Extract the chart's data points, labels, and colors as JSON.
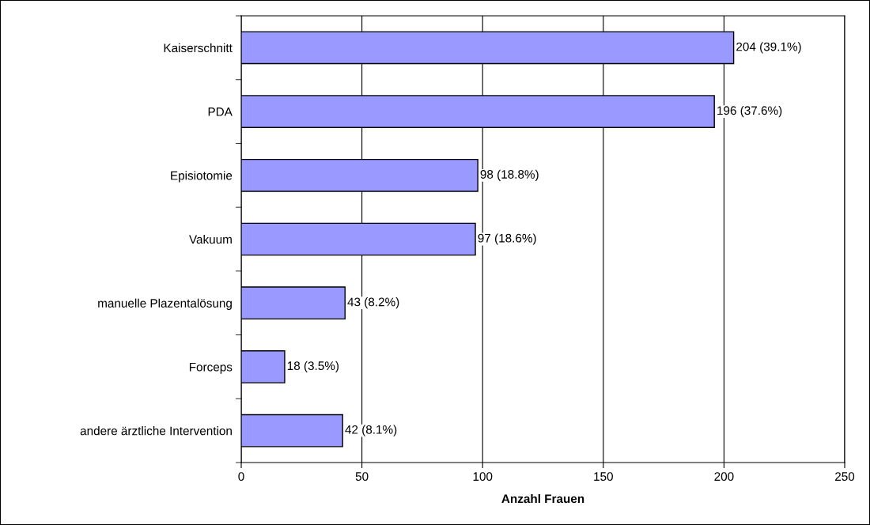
{
  "chart_data": {
    "type": "bar",
    "orientation": "horizontal",
    "xlabel": "Anzahl Frauen",
    "categories": [
      "Kaiserschnitt",
      "PDA",
      "Episiotomie",
      "Vakuum",
      "manuelle Plazentalösung",
      "Forceps",
      "andere ärztliche Intervention"
    ],
    "values": [
      204,
      196,
      98,
      97,
      43,
      18,
      42
    ],
    "value_labels": [
      "204 (39.1%)",
      "196 (37.6%)",
      "98 (18.8%)",
      "97 (18.6%)",
      "43 (8.2%)",
      "18 (3.5%)",
      "42 (8.1%)"
    ],
    "color": "#9999ff",
    "xlim": [
      0,
      250
    ],
    "xticks": [
      0,
      50,
      100,
      150,
      200,
      250
    ],
    "grid": "x",
    "legend": false
  }
}
